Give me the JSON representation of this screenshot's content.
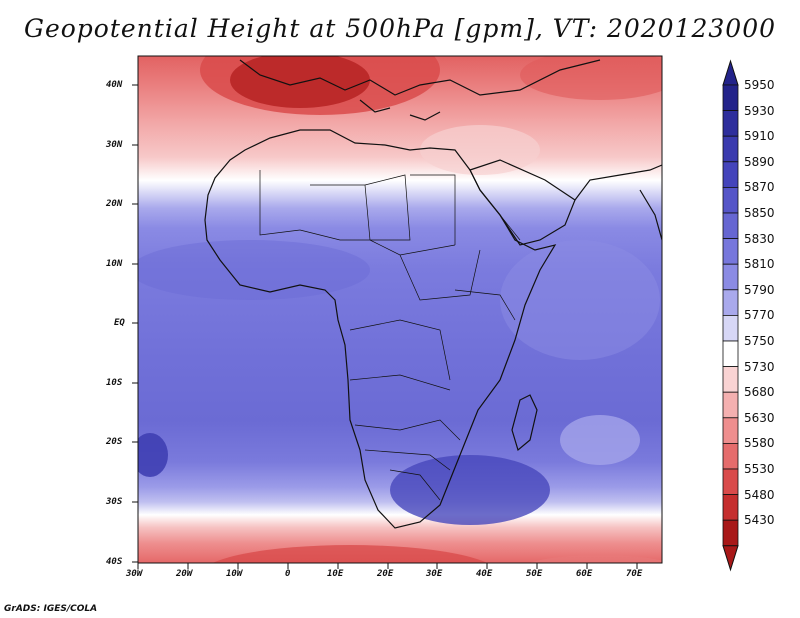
{
  "title": "Geopotential Height at 500hPa [gpm], VT: 2020123000",
  "credit": "GrADS: IGES/COLA",
  "axes": {
    "lat_labels": [
      "40N",
      "30N",
      "20N",
      "10N",
      "EQ",
      "10S",
      "20S",
      "30S",
      "40S"
    ],
    "lon_labels": [
      "30W",
      "20W",
      "10W",
      "0",
      "10E",
      "20E",
      "30E",
      "40E",
      "50E",
      "60E",
      "70E"
    ]
  },
  "colorbar": {
    "levels": [
      "5950",
      "5930",
      "5910",
      "5890",
      "5870",
      "5850",
      "5830",
      "5810",
      "5790",
      "5770",
      "5750",
      "5730",
      "5680",
      "5630",
      "5580",
      "5530",
      "5480",
      "5430"
    ],
    "colors": [
      "#23238a",
      "#2e2e9c",
      "#3a3aae",
      "#4444bb",
      "#5555c8",
      "#6666d2",
      "#7777dc",
      "#8b8be4",
      "#a9a9ec",
      "#d7d7f6",
      "#ffffff",
      "#f9d3d3",
      "#f4b0b0",
      "#ee8e8e",
      "#e56c6c",
      "#d94b4b",
      "#c52e2e",
      "#a81818"
    ]
  },
  "chart_data": {
    "type": "heatmap",
    "title": "Geopotential Height at 500hPa [gpm], VT: 2020123000",
    "variable": "Geopotential Height at 500hPa",
    "units": "gpm",
    "valid_time": "2020123000",
    "xlabel": "",
    "ylabel": "",
    "lon_range": [
      -30,
      75
    ],
    "lat_range": [
      -40,
      45
    ],
    "lon_ticks": [
      "30W",
      "20W",
      "10W",
      "0",
      "10E",
      "20E",
      "30E",
      "40E",
      "50E",
      "60E",
      "70E"
    ],
    "lat_ticks": [
      "40N",
      "30N",
      "20N",
      "10N",
      "EQ",
      "10S",
      "20S",
      "30S",
      "40S"
    ],
    "contour_levels": [
      5430,
      5480,
      5530,
      5580,
      5630,
      5680,
      5730,
      5750,
      5770,
      5790,
      5810,
      5830,
      5850,
      5870,
      5890,
      5910,
      5930,
      5950
    ]
  }
}
